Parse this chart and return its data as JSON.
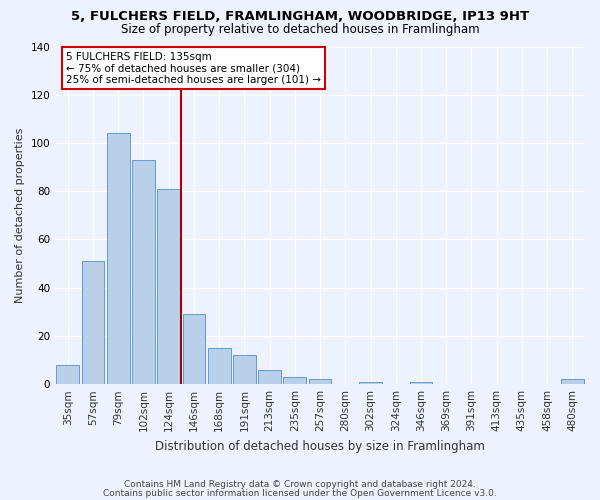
{
  "title1": "5, FULCHERS FIELD, FRAMLINGHAM, WOODBRIDGE, IP13 9HT",
  "title2": "Size of property relative to detached houses in Framlingham",
  "xlabel": "Distribution of detached houses by size in Framlingham",
  "ylabel": "Number of detached properties",
  "categories": [
    "35sqm",
    "57sqm",
    "79sqm",
    "102sqm",
    "124sqm",
    "146sqm",
    "168sqm",
    "191sqm",
    "213sqm",
    "235sqm",
    "257sqm",
    "280sqm",
    "302sqm",
    "324sqm",
    "346sqm",
    "369sqm",
    "391sqm",
    "413sqm",
    "435sqm",
    "458sqm",
    "480sqm"
  ],
  "values": [
    8,
    51,
    104,
    93,
    81,
    29,
    15,
    12,
    6,
    3,
    2,
    0,
    1,
    0,
    1,
    0,
    0,
    0,
    0,
    0,
    2
  ],
  "bar_color": "#b8d0ea",
  "bar_edge_color": "#6699cc",
  "vline_color": "#aa0000",
  "annotation_text": "5 FULCHERS FIELD: 135sqm\n← 75% of detached houses are smaller (304)\n25% of semi-detached houses are larger (101) →",
  "annotation_box_color": "#ffffff",
  "annotation_box_edge": "#cc0000",
  "footer1": "Contains HM Land Registry data © Crown copyright and database right 2024.",
  "footer2": "Contains public sector information licensed under the Open Government Licence v3.0.",
  "ylim": [
    0,
    140
  ],
  "bg_color": "#eef2ff",
  "plot_bg_color": "#eef2ff",
  "grid_color": "#ffffff",
  "tick_color": "#333333",
  "title1_fontsize": 9.5,
  "title2_fontsize": 8.5,
  "xlabel_fontsize": 8.5,
  "ylabel_fontsize": 8,
  "tick_fontsize": 7.5,
  "footer_fontsize": 6.5,
  "vline_x_index": 4,
  "vline_x_offset": 0.5
}
